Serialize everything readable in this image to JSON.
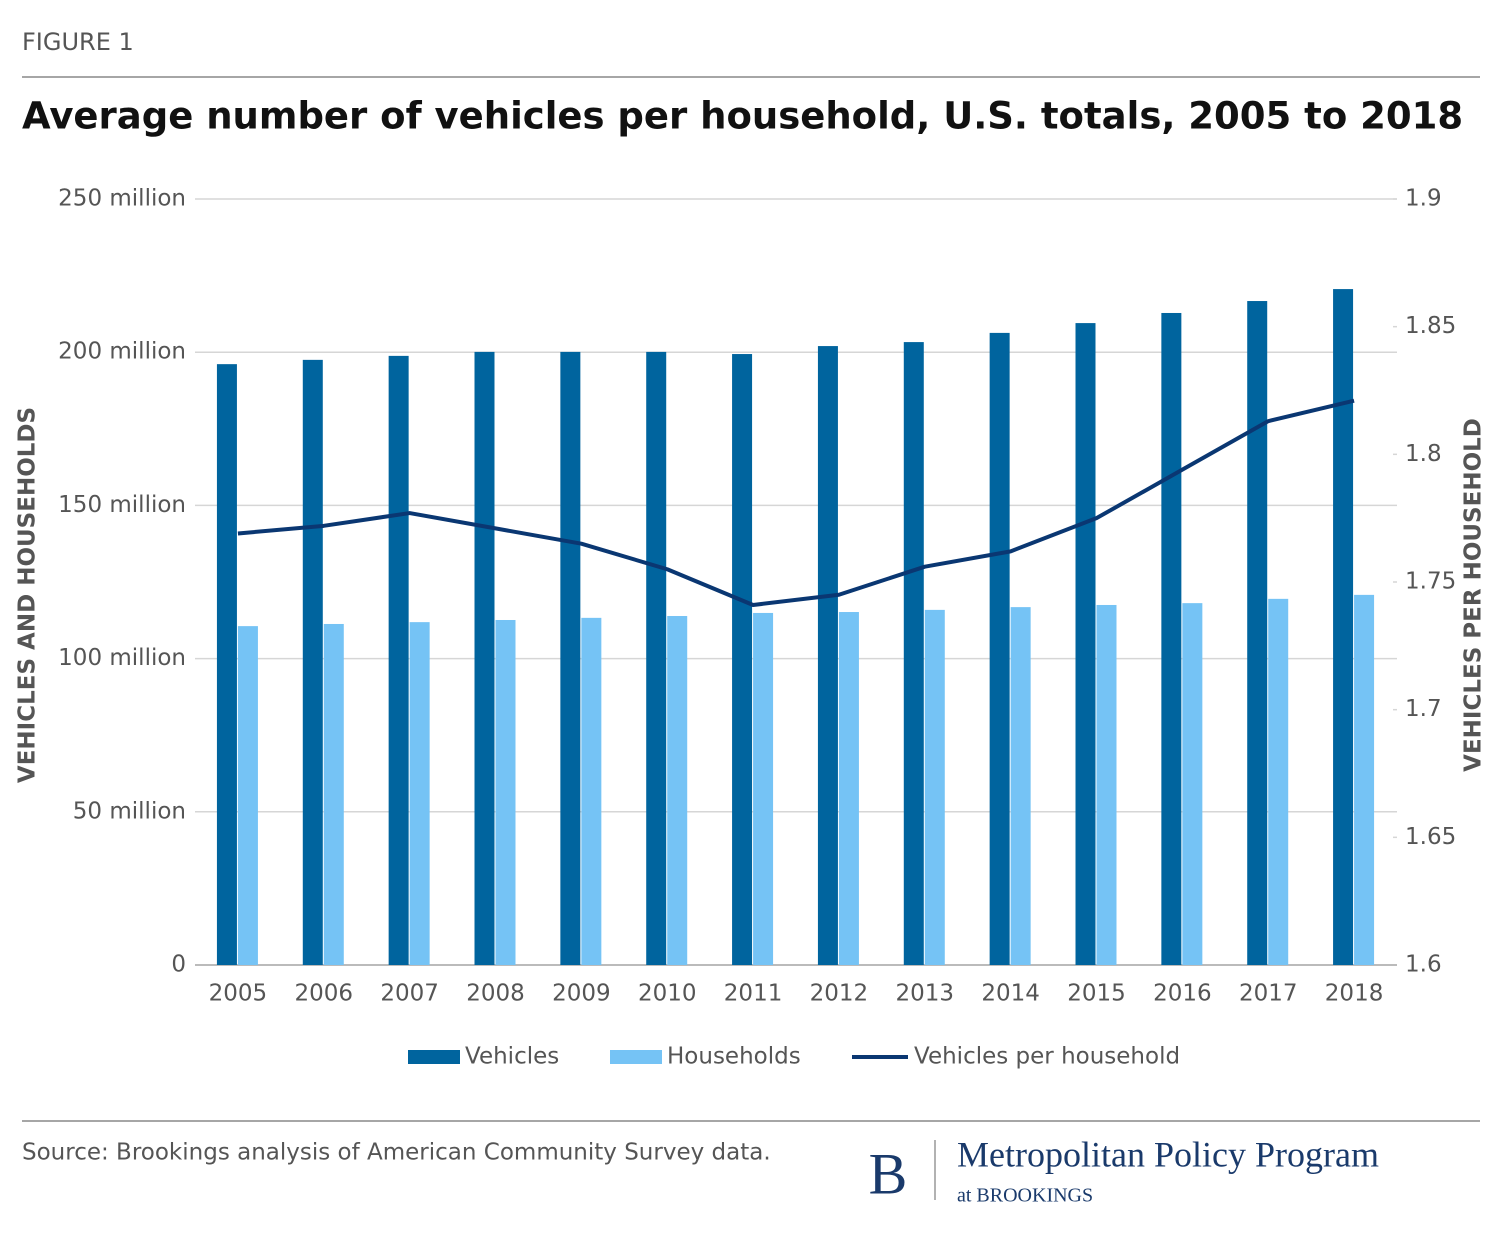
{
  "chart_data": {
    "type": "bar",
    "label": "FIGURE 1",
    "title": "Average number of vehicles per household, U.S. totals, 2005 to 2018",
    "y_label": "VEHICLES AND HOUSEHOLDS",
    "y2_label": "VEHICLES PER HOUSEHOLD",
    "categories": [
      "2005",
      "2006",
      "2007",
      "2008",
      "2009",
      "2010",
      "2011",
      "2012",
      "2013",
      "2014",
      "2015",
      "2016",
      "2017",
      "2018"
    ],
    "series": [
      {
        "name": "Vehicles",
        "type": "bar",
        "color": "#00649e",
        "values": [
          196100000,
          197500000,
          198800000,
          200100000,
          200100000,
          200100000,
          199400000,
          202000000,
          203300000,
          206300000,
          209500000,
          212800000,
          216700000,
          220600000
        ]
      },
      {
        "name": "Households",
        "type": "bar",
        "color": "#75c3f5",
        "values": [
          110600000,
          111300000,
          111900000,
          112600000,
          113300000,
          113900000,
          114900000,
          115200000,
          115900000,
          116800000,
          117500000,
          118100000,
          119500000,
          120800000
        ]
      },
      {
        "name": "Vehicles per household",
        "type": "line",
        "axis": "y2",
        "color": "#0a3772",
        "values": [
          1.769,
          1.772,
          1.777,
          1.771,
          1.765,
          1.755,
          1.741,
          1.745,
          1.756,
          1.762,
          1.775,
          1.794,
          1.813,
          1.821
        ]
      }
    ],
    "ylim": [
      0,
      250000000
    ],
    "yticks": [
      0,
      {
        "value": 50000000,
        "label": "50 million"
      },
      {
        "value": 100000000,
        "label": "100 million"
      },
      {
        "value": 150000000,
        "label": "150 million"
      },
      {
        "value": 200000000,
        "label": "200 million"
      },
      {
        "value": 250000000,
        "label": "250 million"
      }
    ],
    "y2lim": [
      1.6,
      1.9
    ],
    "y2ticks": [
      1.6,
      1.65,
      1.7,
      1.75,
      1.8,
      1.85,
      1.9
    ],
    "grid": true,
    "legend": "bottom",
    "source": "Source: Brookings analysis of American Community Survey data.",
    "branding": {
      "mark": "B",
      "name": "Metropolitan Policy Program",
      "sub": "at BROOKINGS"
    }
  }
}
